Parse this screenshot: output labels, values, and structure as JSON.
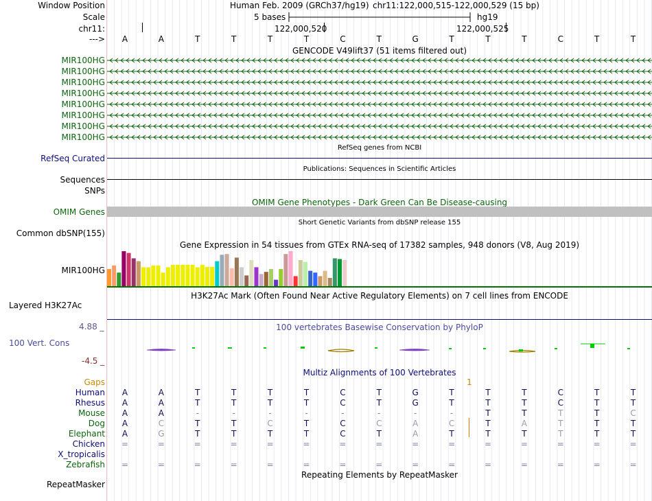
{
  "header": {
    "window_position_label": "Window Position",
    "scale_label": "Scale",
    "chrom_label": "chr11:",
    "arrow_label": "--->",
    "assembly": "Human Feb. 2009 (GRCh37/hg19)",
    "position": "chr11:122,000,515-122,000,529 (15 bp)",
    "scale_text": "5 bases",
    "db": "hg19",
    "coord1": "122,000,520",
    "coord2": "122,000,525",
    "bases": [
      "A",
      "A",
      "T",
      "T",
      "T",
      "T",
      "C",
      "T",
      "G",
      "T",
      "T",
      "T",
      "C",
      "T",
      "T"
    ]
  },
  "gencode": {
    "title": "GENCODE V49lift37 (51 items filtered out)",
    "items": [
      "MIR100HG",
      "MIR100HG",
      "MIR100HG",
      "MIR100HG",
      "MIR100HG",
      "MIR100HG",
      "MIR100HG",
      "MIR100HG"
    ]
  },
  "refseq": {
    "title": "RefSeq genes from NCBI",
    "label": "RefSeq Curated"
  },
  "publications": {
    "title": "Publications: Sequences in Scientific Articles",
    "label": "Sequences"
  },
  "snps": {
    "label": "SNPs"
  },
  "omim": {
    "title": "OMIM Gene Phenotypes - Dark Green Can Be Disease-causing",
    "label": "OMIM Genes"
  },
  "dbsnp": {
    "title": "Short Genetic Variants from dbSNP release 155",
    "label": "Common dbSNP(155)"
  },
  "gtex": {
    "title": "Gene Expression in 54 tissues from GTEx RNA-seq of 17382 samples, 948 donors (V8, Aug 2019)",
    "label": "MIR100HG",
    "bar_values": [
      0.5,
      0.6,
      0.4,
      1.0,
      0.95,
      0.8,
      0.72,
      0.55,
      0.55,
      0.6,
      0.6,
      0.4,
      0.55,
      0.62,
      0.62,
      0.62,
      0.62,
      0.62,
      0.55,
      0.62,
      0.56,
      0.56,
      0.72,
      0.9,
      0.92,
      0.52,
      0.82,
      0.55,
      0.32,
      0.75,
      0.55,
      0.36,
      0.42,
      0.5,
      0.2,
      0.5,
      0.92,
      1.0,
      0.3,
      0.75,
      0.7,
      0.45,
      0.4,
      0.3,
      0.45,
      0.25,
      0.8,
      0.78,
      0.75
    ],
    "bar_colors": [
      "#ff9933",
      "#ff9966",
      "#339933",
      "#990066",
      "#cc3366",
      "#993366",
      "#cc9966",
      "#eeee00",
      "#eeee00",
      "#eeee00",
      "#eeee00",
      "#eeee00",
      "#eeee00",
      "#eeee00",
      "#eeee00",
      "#eeee00",
      "#eeee00",
      "#eeee00",
      "#eeee00",
      "#eeee00",
      "#eeee00",
      "#eeee00",
      "#00cccc",
      "#99aabb",
      "#ccaa99",
      "#ffbbaa",
      "#997755",
      "#cccccc",
      "#996655",
      "#ddddbb",
      "#9933cc",
      "#ccaacc",
      "#996633",
      "#aacc66",
      "#6633cc",
      "#99cc33",
      "#cc9999",
      "#ffaacc",
      "#ff3333",
      "#cccc99",
      "#bbeeaa",
      "#3366cc",
      "#3366ff",
      "#cc9966",
      "#ddbb88",
      "#aa8866",
      "#339966",
      "#009933",
      "#eecccc"
    ]
  },
  "h3k27ac": {
    "title": "H3K27Ac Mark (Often Found Near Active Regulatory Elements) on 7 cell lines from ENCODE",
    "label": "Layered H3K27Ac"
  },
  "phylop": {
    "title": "100 vertebrates Basewise Conservation by PhyloP",
    "label": "100 Vert. Cons",
    "ymax": "4.88 _",
    "ymin": "-4.5 _"
  },
  "multiz": {
    "title": "Multiz Alignments of 100 Vertebrates",
    "gaps_label": "Gaps",
    "gap_mark": "1",
    "species": [
      {
        "name": "Human",
        "bases": [
          "A",
          "A",
          "T",
          "T",
          "T",
          "T",
          "C",
          "T",
          "G",
          "T",
          "T",
          "T",
          "C",
          "T",
          "T"
        ]
      },
      {
        "name": "Rhesus",
        "bases": [
          "A",
          "A",
          "T",
          "T",
          "T",
          "T",
          "C",
          "T",
          "G",
          "T",
          "T",
          "T",
          "C",
          "T",
          "T"
        ]
      },
      {
        "name": "Mouse",
        "bases": [
          "A",
          "A",
          "-",
          "-",
          "-",
          "-",
          "-",
          "-",
          "-",
          "-",
          "T",
          "T",
          "T",
          "T",
          "C"
        ]
      },
      {
        "name": "Dog",
        "bases": [
          "A",
          "C",
          "T",
          "T",
          "C",
          "T",
          "C",
          "C",
          "A",
          "C",
          "T",
          "A",
          "T",
          "T",
          "T"
        ]
      },
      {
        "name": "Elephant",
        "bases": [
          "A",
          "G",
          "T",
          "T",
          "T",
          "T",
          "C",
          "T",
          "A",
          "T",
          "T",
          "T",
          "T",
          "T",
          "T"
        ]
      },
      {
        "name": "Chicken",
        "bases": [
          "=",
          "=",
          "=",
          "=",
          "=",
          "=",
          "=",
          "=",
          "=",
          "=",
          "=",
          "=",
          "=",
          "=",
          "="
        ]
      },
      {
        "name": "X_tropicalis",
        "bases": [
          "",
          "",
          "",
          "",
          "",
          "",
          "",
          "",
          "",
          "",
          "",
          "",
          "",
          "",
          ""
        ]
      },
      {
        "name": "Zebrafish",
        "bases": [
          "=",
          "=",
          "=",
          "=",
          "=",
          "=",
          "=",
          "=",
          "=",
          "=",
          "=",
          "=",
          "=",
          "=",
          "="
        ]
      }
    ]
  },
  "repeatmasker": {
    "title": "Repeating Elements by RepeatMasker",
    "label": "RepeatMasker"
  },
  "colors": {
    "gencode": "#0c640c",
    "refseq": "#0c0c78",
    "phylop_title": "#4a4a9a",
    "ymax": "#5a5a8a",
    "ymin": "#8a2a2a",
    "gaps": "#c88a00",
    "omim_bar": "#c0c0c0"
  }
}
